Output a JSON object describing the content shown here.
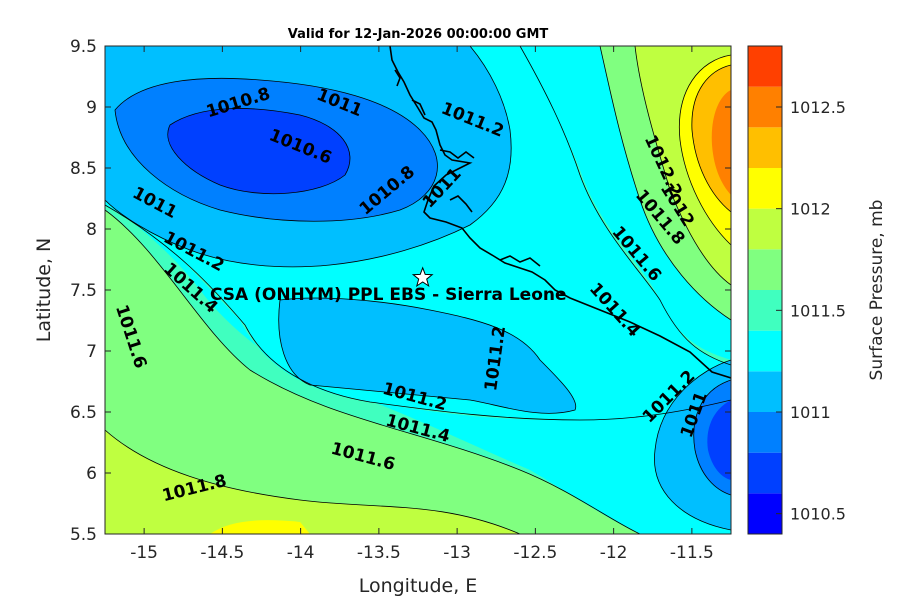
{
  "chart_data": {
    "type": "contour",
    "title": "Valid for 12-Jan-2026 00:00:00 GMT",
    "xlabel": "Longitude, E",
    "ylabel": "Latitude, N",
    "colorbar_label": "Surface Pressure, mb",
    "xlim": [
      -15.25,
      -11.25
    ],
    "ylim": [
      5.5,
      9.5
    ],
    "x_ticks": [
      -15,
      -14.5,
      -14,
      -13.5,
      -13,
      -12.5,
      -12,
      -11.5
    ],
    "x_tick_labels": [
      "-15",
      "-14.5",
      "-14",
      "-13.5",
      "-13",
      "-12.5",
      "-12",
      "-11.5"
    ],
    "y_ticks": [
      5.5,
      6,
      6.5,
      7,
      7.5,
      8,
      8.5,
      9,
      9.5
    ],
    "y_tick_labels": [
      "5.5",
      "6",
      "6.5",
      "7",
      "7.5",
      "8",
      "8.5",
      "9",
      "9.5"
    ],
    "colorbar": {
      "range": [
        1010.4,
        1012.8
      ],
      "levels": [
        1010.4,
        1010.6,
        1010.8,
        1011.0,
        1011.2,
        1011.4,
        1011.6,
        1011.8,
        1012.0,
        1012.2,
        1012.4,
        1012.6,
        1012.8
      ],
      "colors": [
        "#0000ff",
        "#0040ff",
        "#0080ff",
        "#00bfff",
        "#00ffff",
        "#40ffbf",
        "#80ff80",
        "#bfff40",
        "#ffff00",
        "#ffbf00",
        "#ff8000",
        "#ff4000"
      ],
      "ticks": [
        1010.5,
        1011,
        1011.5,
        1012,
        1012.5
      ],
      "tick_labels": [
        "1010.5",
        "1011",
        "1011.5",
        "1012",
        "1012.5"
      ]
    },
    "contour_labels": [
      {
        "text": "1010.8",
        "x": -14.4,
        "y": 9.04,
        "angle": -17
      },
      {
        "text": "1010.6",
        "x": -14.0,
        "y": 8.68,
        "angle": 22
      },
      {
        "text": "1011",
        "x": -13.75,
        "y": 9.04,
        "angle": 22
      },
      {
        "text": "1011.2",
        "x": -12.9,
        "y": 8.9,
        "angle": 22
      },
      {
        "text": "1010.8",
        "x": -13.45,
        "y": 8.32,
        "angle": -40
      },
      {
        "text": "1011",
        "x": -13.1,
        "y": 8.34,
        "angle": -47
      },
      {
        "text": "1011",
        "x": -14.93,
        "y": 8.22,
        "angle": 28
      },
      {
        "text": "1011.2",
        "x": -14.68,
        "y": 7.82,
        "angle": 28
      },
      {
        "text": "1011.4",
        "x": -14.7,
        "y": 7.52,
        "angle": 42
      },
      {
        "text": "1011.6",
        "x": -15.08,
        "y": 7.12,
        "angle": 72
      },
      {
        "text": "1011.2",
        "x": -12.76,
        "y": 6.94,
        "angle": -82
      },
      {
        "text": "1011.2",
        "x": -13.27,
        "y": 6.63,
        "angle": 15
      },
      {
        "text": "1011.4",
        "x": -13.25,
        "y": 6.37,
        "angle": 15
      },
      {
        "text": "1011.6",
        "x": -13.6,
        "y": 6.14,
        "angle": 15
      },
      {
        "text": "1011.8",
        "x": -14.68,
        "y": 5.88,
        "angle": -14
      },
      {
        "text": "1012.2",
        "x": -11.68,
        "y": 8.52,
        "angle": 65
      },
      {
        "text": "1012",
        "x": -11.59,
        "y": 8.2,
        "angle": 58
      },
      {
        "text": "1011.8",
        "x": -11.7,
        "y": 8.1,
        "angle": 50
      },
      {
        "text": "1011.6",
        "x": -11.85,
        "y": 7.8,
        "angle": 50
      },
      {
        "text": "1011.4",
        "x": -11.99,
        "y": 7.34,
        "angle": 48
      },
      {
        "text": "1011.2",
        "x": -11.65,
        "y": 6.63,
        "angle": -45
      },
      {
        "text": "1011",
        "x": -11.49,
        "y": 6.48,
        "angle": -70
      }
    ],
    "station": {
      "label": "CSA (ONHYM) PPL EBS  - Sierra Leone",
      "lon": -13.22,
      "lat": 7.6,
      "marker": "star"
    },
    "grid": false,
    "colorbar_placement": "right"
  }
}
